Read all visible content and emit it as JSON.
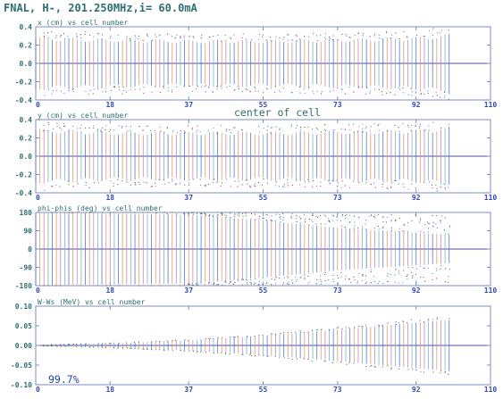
{
  "title": "FNAL, H-, 201.250MHz,i= 60.0mA",
  "center_label": "center of cell",
  "footer_percent": "99.7%",
  "colors": {
    "frame": "#7f8fc0",
    "zero_line": "#4b4ba8",
    "text": "#2f6f6f",
    "tick_text": "#3347b8",
    "bar_colors": [
      "#5a6ad8",
      "#c9a05a",
      "#d87ab8",
      "#6ab8b8"
    ],
    "dot_colors": [
      "#7a5a30",
      "#3a9a9a",
      "#8a6ad8"
    ]
  },
  "chart_data": [
    {
      "type": "scatter",
      "title": "x (cm) vs cell number",
      "ylim": [
        -0.4,
        0.4
      ],
      "yticks": [
        "0.4",
        "0.2",
        "0.0",
        "-0.2",
        "-0.4"
      ],
      "xlim": [
        0,
        110
      ],
      "xticks": [
        "0",
        "18",
        "37",
        "55",
        "73",
        "92",
        "110"
      ],
      "grid": false,
      "envelope": [
        {
          "x": 0,
          "y": 0.27
        },
        {
          "x": 18,
          "y": 0.25
        },
        {
          "x": 37,
          "y": 0.24
        },
        {
          "x": 55,
          "y": 0.24
        },
        {
          "x": 73,
          "y": 0.25
        },
        {
          "x": 92,
          "y": 0.27
        },
        {
          "x": 100,
          "y": 0.3
        }
      ]
    },
    {
      "type": "scatter",
      "title": "y (cm) vs cell number",
      "ylim": [
        -0.4,
        0.4
      ],
      "yticks": [
        "0.4",
        "0.2",
        "0.0",
        "-0.2",
        "-0.4"
      ],
      "xlim": [
        0,
        110
      ],
      "xticks": [
        "0",
        "18",
        "37",
        "55",
        "73",
        "92",
        "110"
      ],
      "grid": false,
      "envelope": [
        {
          "x": 0,
          "y": 0.28
        },
        {
          "x": 18,
          "y": 0.25
        },
        {
          "x": 37,
          "y": 0.25
        },
        {
          "x": 55,
          "y": 0.25
        },
        {
          "x": 73,
          "y": 0.26
        },
        {
          "x": 92,
          "y": 0.27
        },
        {
          "x": 100,
          "y": 0.29
        }
      ]
    },
    {
      "type": "scatter",
      "title": "phi-phis (deg) vs cell number",
      "ylim": [
        -180,
        180
      ],
      "yticks": [
        "180",
        "90",
        "0",
        "-90",
        "-180"
      ],
      "xlim": [
        0,
        110
      ],
      "xticks": [
        "0",
        "18",
        "37",
        "55",
        "73",
        "92",
        "110"
      ],
      "grid": false,
      "envelope": [
        {
          "x": 0,
          "y": 178
        },
        {
          "x": 37,
          "y": 170
        },
        {
          "x": 55,
          "y": 140
        },
        {
          "x": 73,
          "y": 105
        },
        {
          "x": 92,
          "y": 80
        },
        {
          "x": 100,
          "y": 70
        }
      ]
    },
    {
      "type": "scatter",
      "title": "W-Ws (MeV) vs cell number",
      "ylim": [
        -0.1,
        0.1
      ],
      "yticks": [
        "0.10",
        "0.05",
        "0.00",
        "-0.05",
        "-0.10"
      ],
      "xlim": [
        0,
        110
      ],
      "xticks": [
        "0",
        "18",
        "37",
        "55",
        "73",
        "92",
        "110"
      ],
      "grid": false,
      "envelope": [
        {
          "x": 0,
          "y": 0.001
        },
        {
          "x": 18,
          "y": 0.005
        },
        {
          "x": 37,
          "y": 0.013
        },
        {
          "x": 55,
          "y": 0.025
        },
        {
          "x": 73,
          "y": 0.04
        },
        {
          "x": 92,
          "y": 0.058
        },
        {
          "x": 100,
          "y": 0.065
        }
      ]
    }
  ]
}
